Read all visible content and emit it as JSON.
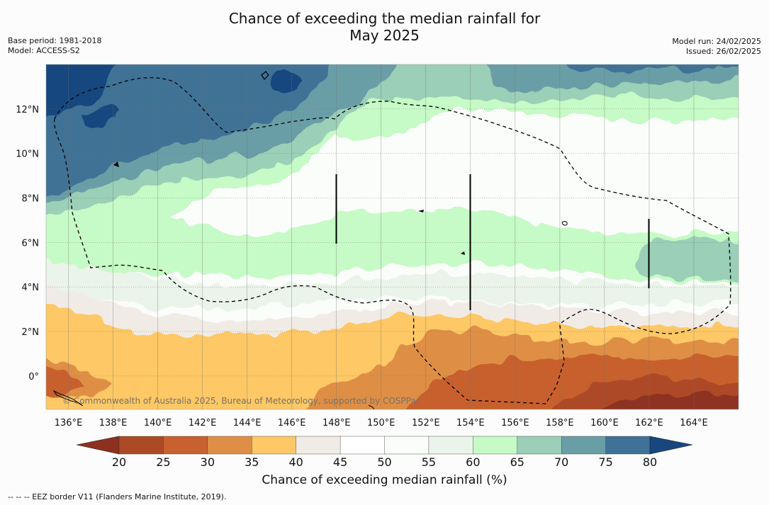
{
  "title_line1": "Chance of exceeding the median rainfall for",
  "title_line2": "May 2025",
  "base_period": "Base period: 1981-2018",
  "model": "Model: ACCESS-S2",
  "model_run": "Model run: 24/02/2025",
  "issued": "Issued: 26/02/2025",
  "copyright": "© Commonwealth of Australia 2025, Bureau of Meteorology, supported by COSPPac",
  "footnote": "--  --  -- EEZ border V11 (Flanders Marine Institute, 2019).",
  "colorbar_title": "Chance of exceeding median rainfall (%)",
  "map": {
    "lon_range": [
      135,
      166
    ],
    "lat_range": [
      -1.5,
      14
    ],
    "lon_ticks": [
      "136°E",
      "138°E",
      "140°E",
      "142°E",
      "144°E",
      "146°E",
      "148°E",
      "150°E",
      "152°E",
      "154°E",
      "156°E",
      "158°E",
      "160°E",
      "162°E",
      "164°E"
    ],
    "lat_ticks": [
      "12°N",
      "10°N",
      "8°N",
      "6°N",
      "4°N",
      "2°N",
      "0°"
    ],
    "gridlines": true
  },
  "colorbar": {
    "ticks": [
      "20",
      "25",
      "30",
      "35",
      "40",
      "45",
      "50",
      "55",
      "60",
      "65",
      "70",
      "75",
      "80"
    ],
    "colors": [
      "#ad4a26",
      "#c8612f",
      "#de8f45",
      "#fdc865",
      "#f1ebe6",
      "#ffffff",
      "#fbfdfb",
      "#eaf4ea",
      "#c6fac6",
      "#9bcfb7",
      "#6a9ea6",
      "#3f7296"
    ],
    "under_color": "#8e3020",
    "over_color": "#18467f"
  },
  "bands": [
    {
      "label": "over 80%",
      "color": "#18467f"
    },
    {
      "label": "75-80%",
      "color": "#3f7296"
    },
    {
      "label": "70-75%",
      "color": "#6a9ea6"
    },
    {
      "label": "65-70%",
      "color": "#9bcfb7"
    },
    {
      "label": "60-65%",
      "color": "#c6fac6"
    },
    {
      "label": "55-60%",
      "color": "#eaf4ea"
    },
    {
      "label": "50-55%",
      "color": "#fbfdfb"
    },
    {
      "label": "40-45%",
      "color": "#f1ebe6"
    },
    {
      "label": "35-40%",
      "color": "#fdc865"
    },
    {
      "label": "30-35%",
      "color": "#de8f45"
    },
    {
      "label": "25-30%",
      "color": "#c8612f"
    },
    {
      "label": "20-25%",
      "color": "#ad4a26"
    },
    {
      "label": "under 20%",
      "color": "#8e3020"
    }
  ]
}
